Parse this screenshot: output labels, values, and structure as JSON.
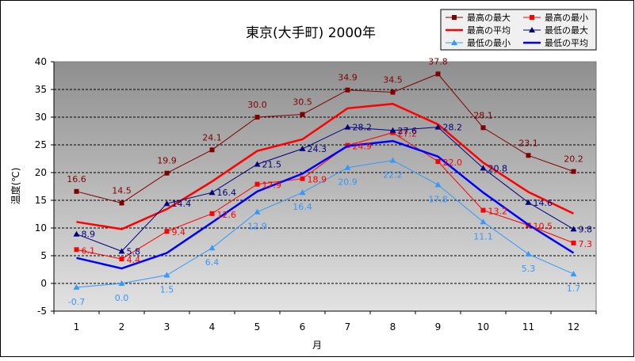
{
  "chart_data": {
    "type": "line",
    "title": "東京(大手町) 2000年",
    "xlabel": "月",
    "ylabel": "温度(℃)",
    "x": [
      1,
      2,
      3,
      4,
      5,
      6,
      7,
      8,
      9,
      10,
      11,
      12
    ],
    "ylim": [
      -5,
      40
    ],
    "yticks": [
      -5,
      0,
      5,
      10,
      15,
      20,
      25,
      30,
      35,
      40
    ],
    "grid": true,
    "legend_position": "top-right",
    "series": [
      {
        "name": "最高の最大",
        "color": "#800000",
        "marker": "square",
        "labels": true,
        "values": [
          16.6,
          14.5,
          19.9,
          24.1,
          30.0,
          30.5,
          34.9,
          34.5,
          37.8,
          28.1,
          23.1,
          20.2
        ]
      },
      {
        "name": "最高の最小",
        "color": "#ff0000",
        "marker": "square",
        "labels": true,
        "values": [
          6.1,
          4.4,
          9.4,
          12.6,
          17.9,
          18.9,
          24.9,
          27.2,
          22.0,
          13.2,
          10.5,
          7.3
        ]
      },
      {
        "name": "最高の平均",
        "color": "#ff0000",
        "marker": "none",
        "labels": false,
        "values": [
          11.1,
          9.8,
          13.4,
          18.4,
          23.9,
          26.0,
          31.6,
          32.4,
          28.7,
          21.8,
          16.5,
          12.6
        ]
      },
      {
        "name": "最低の最大",
        "color": "#000080",
        "marker": "triangle",
        "labels": true,
        "values": [
          8.9,
          5.8,
          14.4,
          16.4,
          21.5,
          24.3,
          28.2,
          27.6,
          28.2,
          20.8,
          14.6,
          9.8
        ]
      },
      {
        "name": "最低の最小",
        "color": "#3399ff",
        "marker": "triangle",
        "labels": true,
        "values": [
          -0.7,
          0.0,
          1.5,
          6.4,
          12.9,
          16.4,
          20.9,
          22.2,
          17.8,
          11.1,
          5.3,
          1.7
        ]
      },
      {
        "name": "最低の平均",
        "color": "#0000ff",
        "marker": "none",
        "labels": false,
        "values": [
          4.6,
          2.7,
          5.5,
          11.0,
          16.6,
          19.8,
          24.8,
          25.7,
          22.9,
          16.4,
          10.6,
          5.5
        ]
      }
    ]
  }
}
